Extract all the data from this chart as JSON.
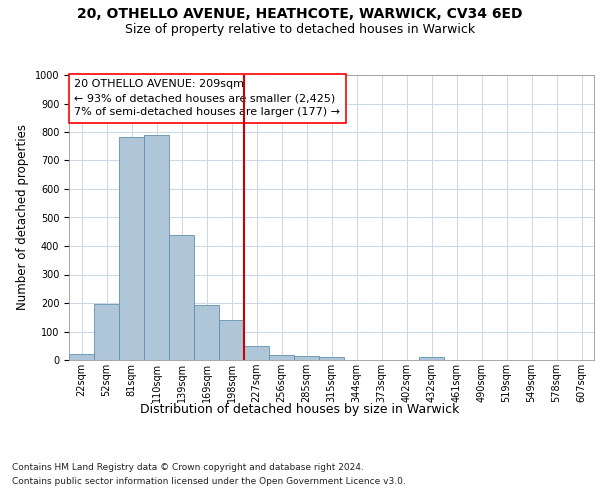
{
  "title1": "20, OTHELLO AVENUE, HEATHCOTE, WARWICK, CV34 6ED",
  "title2": "Size of property relative to detached houses in Warwick",
  "xlabel": "Distribution of detached houses by size in Warwick",
  "ylabel": "Number of detached properties",
  "footer1": "Contains HM Land Registry data © Crown copyright and database right 2024.",
  "footer2": "Contains public sector information licensed under the Open Government Licence v3.0.",
  "annotation_line1": "20 OTHELLO AVENUE: 209sqm",
  "annotation_line2": "← 93% of detached houses are smaller (2,425)",
  "annotation_line3": "7% of semi-detached houses are larger (177) →",
  "bar_labels": [
    "22sqm",
    "52sqm",
    "81sqm",
    "110sqm",
    "139sqm",
    "169sqm",
    "198sqm",
    "227sqm",
    "256sqm",
    "285sqm",
    "315sqm",
    "344sqm",
    "373sqm",
    "402sqm",
    "432sqm",
    "461sqm",
    "490sqm",
    "519sqm",
    "549sqm",
    "578sqm",
    "607sqm"
  ],
  "bar_values": [
    20,
    197,
    783,
    790,
    438,
    192,
    140,
    50,
    18,
    13,
    12,
    0,
    0,
    0,
    10,
    0,
    0,
    0,
    0,
    0,
    0
  ],
  "bar_color": "#aec6d8",
  "bar_edge_color": "#6090b0",
  "vline_x": 6.5,
  "vline_color": "#cc0000",
  "ylim": [
    0,
    1000
  ],
  "yticks": [
    0,
    100,
    200,
    300,
    400,
    500,
    600,
    700,
    800,
    900,
    1000
  ],
  "bg_color": "#ffffff",
  "plot_bg_color": "#ffffff",
  "grid_color": "#c8d8e8",
  "title1_fontsize": 10,
  "title2_fontsize": 9,
  "annotation_fontsize": 8,
  "ylabel_fontsize": 8.5,
  "xlabel_fontsize": 9,
  "tick_fontsize": 7,
  "footer_fontsize": 6.5
}
